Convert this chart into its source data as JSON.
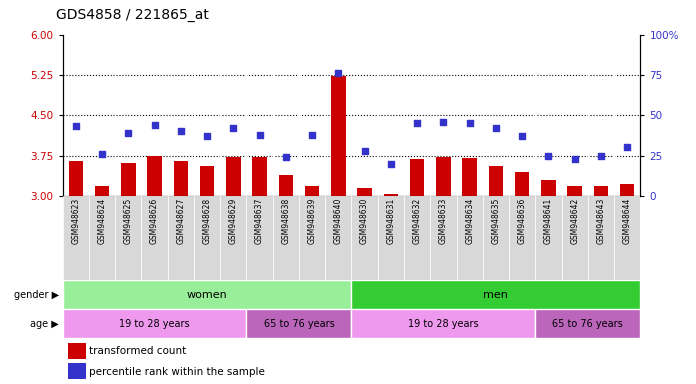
{
  "title": "GDS4858 / 221865_at",
  "samples": [
    "GSM948623",
    "GSM948624",
    "GSM948625",
    "GSM948626",
    "GSM948627",
    "GSM948628",
    "GSM948629",
    "GSM948637",
    "GSM948638",
    "GSM948639",
    "GSM948640",
    "GSM948630",
    "GSM948631",
    "GSM948632",
    "GSM948633",
    "GSM948634",
    "GSM948635",
    "GSM948636",
    "GSM948641",
    "GSM948642",
    "GSM948643",
    "GSM948644"
  ],
  "bar_values": [
    3.65,
    3.18,
    3.62,
    3.75,
    3.65,
    3.55,
    3.72,
    3.72,
    3.38,
    3.18,
    5.22,
    3.15,
    3.03,
    3.68,
    3.72,
    3.7,
    3.55,
    3.45,
    3.3,
    3.18,
    3.18,
    3.22
  ],
  "dot_values": [
    43,
    26,
    39,
    44,
    40,
    37,
    42,
    38,
    24,
    38,
    76,
    28,
    20,
    45,
    46,
    45,
    42,
    37,
    25,
    23,
    25,
    30
  ],
  "bar_color": "#cc0000",
  "dot_color": "#3333cc",
  "ylim_left": [
    3.0,
    6.0
  ],
  "ylim_right": [
    0,
    100
  ],
  "yticks_left": [
    3.0,
    3.75,
    4.5,
    5.25,
    6.0
  ],
  "yticks_right": [
    0,
    25,
    50,
    75,
    100
  ],
  "hlines": [
    3.75,
    4.5,
    5.25
  ],
  "bar_base": 3.0,
  "women_color": "#99ee99",
  "men_color": "#33cc33",
  "age_young_color": "#ee99ee",
  "age_old_color": "#bb66bb",
  "cell_bg_color": "#d8d8d8",
  "plot_bg": "#ffffff"
}
